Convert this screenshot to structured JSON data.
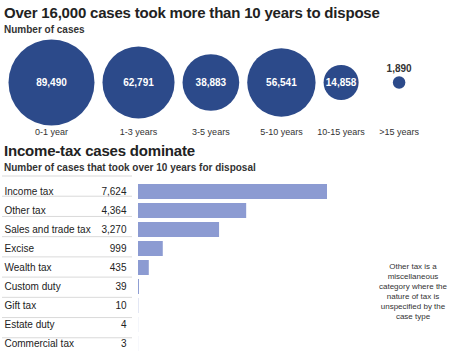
{
  "chart_data": [
    {
      "type": "bubble",
      "title": "Over 16,000 cases took more than 10 years to dispose",
      "subtitle": "Number of cases",
      "categories": [
        "0-1 year",
        "1-3 years",
        "3-5 years",
        "5-10 years",
        "10-15 years",
        ">15 years"
      ],
      "values": [
        89490,
        62791,
        38883,
        56541,
        14858,
        1890
      ],
      "value_labels": [
        "89,490",
        "62,791",
        "38,883",
        "56,541",
        "14,858",
        "1,890"
      ],
      "color": "#2c4a8a",
      "data_labels": true,
      "tick_labels": false
    },
    {
      "type": "bar",
      "title": "Income-tax cases dominate",
      "subtitle": "Number of cases that took over 10 years for disposal",
      "orientation": "horizontal",
      "categories": [
        "Income tax",
        "Other tax",
        "Sales and trade tax",
        "Excise",
        "Wealth tax",
        "Custom duty",
        "Gift tax",
        "Estate duty",
        "Commercial tax"
      ],
      "values": [
        7624,
        4364,
        3270,
        999,
        435,
        39,
        10,
        4,
        3
      ],
      "value_labels": [
        "7,624",
        "4,364",
        "3,270",
        "999",
        "435",
        "39",
        "10",
        "4",
        "3"
      ],
      "xlim": [
        0,
        7624
      ],
      "color": "#8c9bd2",
      "data_labels": true,
      "tick_labels": false,
      "note": "Other tax is a miscellaneous category where the nature of tax is unspecified by the case type"
    }
  ]
}
